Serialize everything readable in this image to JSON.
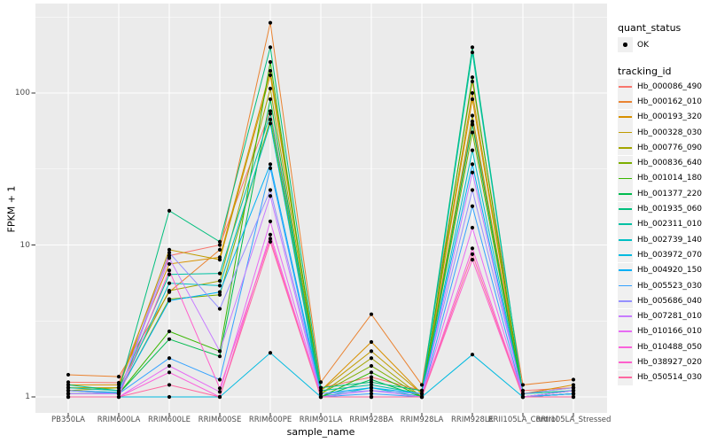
{
  "figure": {
    "background": "#ffffff",
    "panel_background": "#ebebeb",
    "grid_color": "#ffffff",
    "tick_mark_color": "#333333",
    "tick_label_color": "#4d4d4d",
    "point_color": "#000000"
  },
  "chart_data": {
    "type": "line",
    "title": "",
    "xlabel": "sample_name",
    "ylabel": "FPKM + 1",
    "y_scale": "log10",
    "y_ticks": [
      1,
      10,
      100
    ],
    "y_minor_ticks": [
      3.162,
      31.62,
      316.2
    ],
    "ylim": [
      0.79,
      390
    ],
    "grid": true,
    "legend_position": "right",
    "categories": [
      "PB350LA",
      "RRIM600LA",
      "RRIM600LE",
      "RRIM600SE",
      "RRIM600PE",
      "RRIM901LA",
      "RRIM928BA",
      "RRIM928LA",
      "RRIM928LE",
      "RRII105LA_Control",
      "RRII105LA_Stressed"
    ],
    "series": [
      {
        "name": "Hb_000086_490",
        "color": "#F8766D",
        "values": [
          1.25,
          1.24,
          8.5,
          10.0,
          76,
          1.15,
          1.35,
          1.1,
          65,
          1.1,
          1.15
        ]
      },
      {
        "name": "Hb_000162_010",
        "color": "#EA8331",
        "values": [
          1.4,
          1.36,
          4.9,
          9.3,
          290,
          1.25,
          3.5,
          1.2,
          119,
          1.2,
          1.3
        ]
      },
      {
        "name": "Hb_000193_320",
        "color": "#D89000",
        "values": [
          1.2,
          1.2,
          7.5,
          8.3,
          140,
          1.1,
          2.3,
          1.05,
          91,
          1.05,
          1.2
        ]
      },
      {
        "name": "Hb_000328_030",
        "color": "#C09B00",
        "values": [
          1.15,
          1.15,
          9.3,
          8.0,
          131,
          1.1,
          2.0,
          1.05,
          100,
          1.05,
          1.15
        ]
      },
      {
        "name": "Hb_000776_090",
        "color": "#A3A500",
        "values": [
          1.1,
          1.15,
          5.0,
          5.8,
          107,
          1.05,
          1.8,
          1.0,
          71,
          1.0,
          1.1
        ]
      },
      {
        "name": "Hb_000836_640",
        "color": "#7CAE00",
        "values": [
          1.1,
          1.07,
          4.4,
          4.7,
          67,
          1.05,
          1.6,
          1.0,
          55,
          1.0,
          1.1
        ]
      },
      {
        "name": "Hb_001014_180",
        "color": "#39B600",
        "values": [
          1.05,
          1.05,
          2.7,
          2.0,
          160,
          1.0,
          1.45,
          1.0,
          127,
          1.0,
          1.05
        ]
      },
      {
        "name": "Hb_001377_220",
        "color": "#00BB4E",
        "values": [
          1.05,
          1.05,
          2.4,
          1.85,
          91,
          1.0,
          1.3,
          1.0,
          62,
          1.0,
          1.05
        ]
      },
      {
        "name": "Hb_001935_060",
        "color": "#00BF7D",
        "values": [
          1.2,
          1.1,
          16.8,
          10.5,
          200,
          1.15,
          1.25,
          1.1,
          200,
          1.05,
          1.1
        ]
      },
      {
        "name": "Hb_002311_010",
        "color": "#00C1A3",
        "values": [
          1.15,
          1.1,
          6.4,
          6.5,
          73,
          1.1,
          1.2,
          1.05,
          185,
          1.05,
          1.1
        ]
      },
      {
        "name": "Hb_002739_140",
        "color": "#00BFC4",
        "values": [
          1.1,
          1.05,
          5.6,
          5.4,
          63,
          1.0,
          1.15,
          1.0,
          42,
          1.0,
          1.05
        ]
      },
      {
        "name": "Hb_003972_070",
        "color": "#00BAE0",
        "values": [
          1.0,
          1.0,
          1.0,
          1.0,
          1.95,
          1.0,
          1.0,
          1.0,
          1.9,
          1.0,
          1.05
        ]
      },
      {
        "name": "Hb_004920_150",
        "color": "#00B0F6",
        "values": [
          1.1,
          1.07,
          4.3,
          4.9,
          34,
          1.05,
          1.15,
          1.05,
          34,
          1.0,
          1.1
        ]
      },
      {
        "name": "Hb_005523_030",
        "color": "#35A2FF",
        "values": [
          1.05,
          1.05,
          1.8,
          1.3,
          32,
          1.0,
          1.05,
          1.0,
          18,
          1.0,
          1.05
        ]
      },
      {
        "name": "Hb_005686_040",
        "color": "#9590FF",
        "values": [
          1.1,
          1.05,
          8.9,
          3.8,
          23,
          1.05,
          1.1,
          1.05,
          23,
          1.05,
          1.15
        ]
      },
      {
        "name": "Hb_007281_010",
        "color": "#C77CFF",
        "values": [
          1.05,
          1.05,
          8.2,
          2.0,
          21,
          1.0,
          1.1,
          1.0,
          30,
          1.0,
          1.1
        ]
      },
      {
        "name": "Hb_010166_010",
        "color": "#E76BF3",
        "values": [
          1.0,
          1.0,
          1.6,
          1.08,
          14.3,
          1.0,
          1.0,
          1.0,
          13,
          1.0,
          1.0
        ]
      },
      {
        "name": "Hb_010488_050",
        "color": "#FA62DB",
        "values": [
          1.0,
          1.0,
          1.45,
          1.0,
          11.7,
          1.0,
          1.0,
          1.0,
          9.5,
          1.0,
          1.0
        ]
      },
      {
        "name": "Hb_038927_020",
        "color": "#FF61CC",
        "values": [
          1.0,
          1.0,
          6.8,
          1.14,
          11.0,
          1.0,
          1.0,
          1.0,
          8.0,
          1.0,
          1.0
        ]
      },
      {
        "name": "Hb_050514_030",
        "color": "#FF68A1",
        "values": [
          1.0,
          1.0,
          1.2,
          1.0,
          10.5,
          1.0,
          1.0,
          1.0,
          8.7,
          1.0,
          1.0
        ]
      }
    ]
  },
  "legend": {
    "quant_status_title": "quant_status",
    "quant_status_items": [
      {
        "label": "OK"
      }
    ],
    "tracking_title": "tracking_id"
  }
}
